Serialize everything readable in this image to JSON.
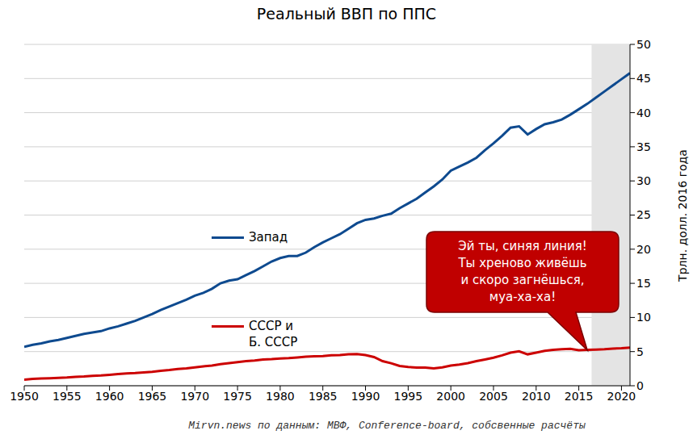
{
  "chart_data": {
    "type": "line",
    "title": "Реальный ВВП по ППС",
    "y_label": "Трлн. долл. 2016 года",
    "source": "Mirvn.news по данным: МВФ, Conference-board, собсвенные расчёты",
    "x": [
      1950,
      1951,
      1952,
      1953,
      1954,
      1955,
      1956,
      1957,
      1958,
      1959,
      1960,
      1961,
      1962,
      1963,
      1964,
      1965,
      1966,
      1967,
      1968,
      1969,
      1970,
      1971,
      1972,
      1973,
      1974,
      1975,
      1976,
      1977,
      1978,
      1979,
      1980,
      1981,
      1982,
      1983,
      1984,
      1985,
      1986,
      1987,
      1988,
      1989,
      1990,
      1991,
      1992,
      1993,
      1994,
      1995,
      1996,
      1997,
      1998,
      1999,
      2000,
      2001,
      2002,
      2003,
      2004,
      2005,
      2006,
      2007,
      2008,
      2009,
      2010,
      2011,
      2012,
      2013,
      2014,
      2015,
      2016,
      2017,
      2018,
      2019,
      2020,
      2021
    ],
    "series": [
      {
        "name": "Запад",
        "color": "#0e4a8f",
        "values": [
          5.7,
          6.0,
          6.2,
          6.5,
          6.7,
          7.0,
          7.3,
          7.6,
          7.8,
          8.0,
          8.4,
          8.7,
          9.1,
          9.5,
          10.0,
          10.5,
          11.1,
          11.6,
          12.1,
          12.6,
          13.2,
          13.6,
          14.2,
          15.0,
          15.4,
          15.6,
          16.2,
          16.8,
          17.5,
          18.2,
          18.7,
          19.0,
          19.0,
          19.5,
          20.3,
          21.0,
          21.6,
          22.2,
          23.0,
          23.8,
          24.3,
          24.5,
          24.9,
          25.2,
          26.0,
          26.7,
          27.4,
          28.3,
          29.2,
          30.2,
          31.5,
          32.1,
          32.7,
          33.4,
          34.5,
          35.5,
          36.6,
          37.8,
          38.0,
          36.8,
          37.6,
          38.3,
          38.6,
          39.0,
          39.7,
          40.5,
          41.3,
          42.2,
          43.1,
          44.0,
          44.9,
          45.8
        ]
      },
      {
        "name": "СССР и\nБ. СССР",
        "color": "#cc0000",
        "values": [
          0.9,
          1.0,
          1.05,
          1.1,
          1.15,
          1.2,
          1.3,
          1.35,
          1.45,
          1.5,
          1.6,
          1.7,
          1.8,
          1.85,
          1.95,
          2.05,
          2.2,
          2.3,
          2.45,
          2.55,
          2.7,
          2.85,
          2.95,
          3.15,
          3.3,
          3.45,
          3.6,
          3.7,
          3.85,
          3.9,
          4.0,
          4.05,
          4.15,
          4.25,
          4.3,
          4.35,
          4.45,
          4.5,
          4.6,
          4.65,
          4.5,
          4.2,
          3.6,
          3.3,
          2.9,
          2.75,
          2.65,
          2.65,
          2.55,
          2.7,
          2.95,
          3.1,
          3.3,
          3.6,
          3.85,
          4.1,
          4.45,
          4.85,
          5.05,
          4.6,
          4.85,
          5.1,
          5.25,
          5.35,
          5.4,
          5.2,
          5.25,
          5.3,
          5.35,
          5.45,
          5.5,
          5.6
        ]
      }
    ],
    "xlim": [
      1950,
      2021
    ],
    "xticks": [
      1950,
      1955,
      1960,
      1965,
      1970,
      1975,
      1980,
      1985,
      1990,
      1995,
      2000,
      2005,
      2010,
      2015,
      2020
    ],
    "ylim": [
      0,
      50
    ],
    "yticks": [
      0,
      5,
      10,
      15,
      20,
      25,
      30,
      35,
      40,
      45,
      50
    ],
    "grid": true,
    "shaded_x": [
      2016.5,
      2021
    ],
    "annotations": [
      {
        "text": "Эй ты, синяя линия!\nТы хреново живёшь\nи скоро загнёшься,\nмуа-ха-ха!",
        "x": 2016,
        "y": 5.2
      }
    ]
  }
}
